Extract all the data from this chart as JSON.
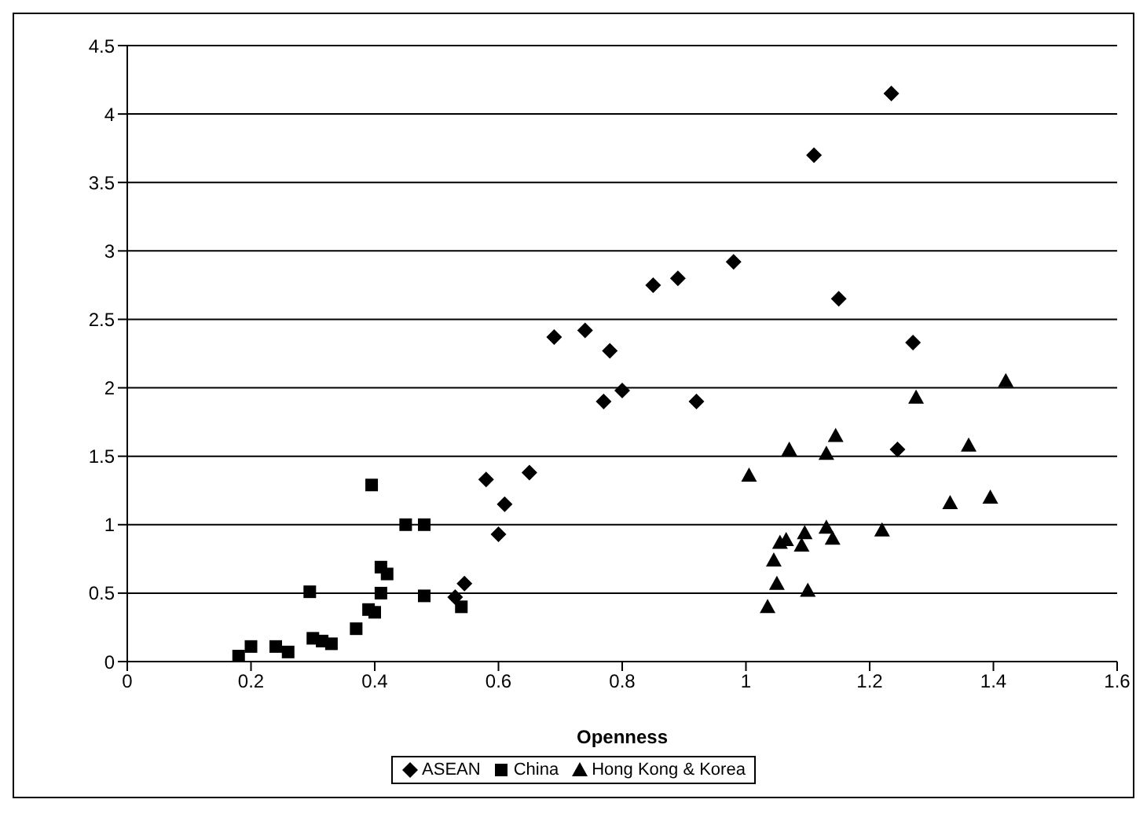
{
  "chart_data": {
    "type": "scatter",
    "xlabel": "Openness",
    "xlim": [
      0,
      1.6
    ],
    "xticks": [
      0,
      0.2,
      0.4,
      0.6,
      0.8,
      1,
      1.2,
      1.4,
      1.6
    ],
    "ylim": [
      0,
      4.5
    ],
    "yticks": [
      0,
      0.5,
      1,
      1.5,
      2,
      2.5,
      3,
      3.5,
      4,
      4.5
    ],
    "grid": "y",
    "legend": "bottom",
    "series": [
      {
        "name": "ASEAN",
        "color": "#000000",
        "marker": "diamond",
        "x": [
          0.53,
          0.545,
          0.58,
          0.6,
          0.61,
          0.65,
          0.69,
          0.74,
          0.78,
          0.77,
          0.8,
          0.85,
          0.89,
          0.92,
          0.98,
          1.11,
          1.235,
          1.15,
          1.27,
          1.245
        ],
        "values": [
          0.47,
          0.57,
          1.33,
          0.93,
          1.15,
          1.38,
          2.37,
          2.42,
          2.27,
          1.9,
          1.98,
          2.75,
          2.8,
          1.9,
          2.92,
          3.7,
          4.15,
          2.65,
          2.33,
          1.55
        ]
      },
      {
        "name": "China",
        "color": "#000000",
        "marker": "square",
        "x": [
          0.18,
          0.2,
          0.24,
          0.26,
          0.295,
          0.3,
          0.315,
          0.33,
          0.37,
          0.39,
          0.4,
          0.395,
          0.41,
          0.41,
          0.42,
          0.45,
          0.48,
          0.48,
          0.54
        ],
        "values": [
          0.04,
          0.11,
          0.11,
          0.07,
          0.51,
          0.17,
          0.15,
          0.13,
          0.24,
          0.38,
          0.36,
          1.29,
          0.5,
          0.69,
          0.64,
          1.0,
          1.0,
          0.48,
          0.4
        ]
      },
      {
        "name": "Hong Kong & Korea",
        "color": "#000000",
        "marker": "triangle",
        "x": [
          1.005,
          1.035,
          1.045,
          1.05,
          1.055,
          1.065,
          1.07,
          1.09,
          1.095,
          1.1,
          1.13,
          1.13,
          1.14,
          1.145,
          1.22,
          1.275,
          1.33,
          1.36,
          1.395,
          1.42
        ],
        "values": [
          1.36,
          0.4,
          0.74,
          0.57,
          0.87,
          0.89,
          1.55,
          0.85,
          0.94,
          0.52,
          1.52,
          0.98,
          0.9,
          1.65,
          0.96,
          1.93,
          1.16,
          1.58,
          1.2,
          2.05
        ]
      }
    ]
  }
}
